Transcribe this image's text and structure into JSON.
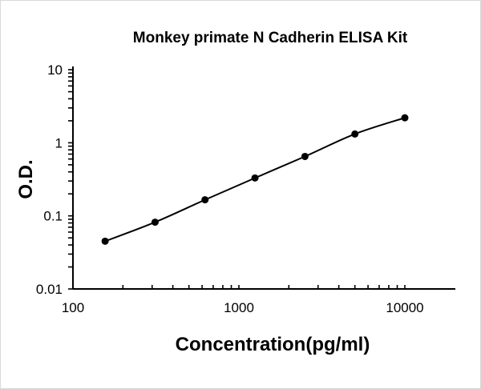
{
  "chart_data": {
    "type": "line",
    "title": "Monkey primate N Cadherin ELISA Kit",
    "xlabel": "Concentration(pg/ml)",
    "ylabel": "O.D.",
    "x_scale": "log",
    "y_scale": "log",
    "xlim": [
      100,
      20000
    ],
    "ylim": [
      0.01,
      10
    ],
    "x_ticks": [
      "100",
      "1000",
      "10000"
    ],
    "y_ticks": [
      "0.01",
      "0.1",
      "1",
      "10"
    ],
    "grid": false,
    "series": [
      {
        "x": [
          156.25,
          312.5,
          625,
          1250,
          2500,
          5000,
          10000
        ],
        "y": [
          0.045,
          0.082,
          0.166,
          0.33,
          0.65,
          1.32,
          2.2
        ],
        "color": "#000000",
        "marker": "circle",
        "smooth": true
      }
    ]
  }
}
